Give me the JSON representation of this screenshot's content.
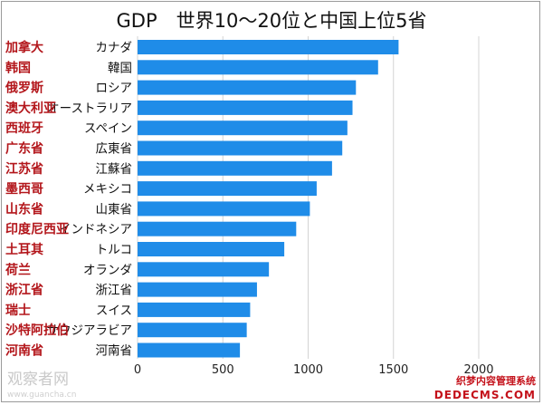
{
  "chart_data": {
    "type": "bar",
    "orientation": "horizontal",
    "title": "GDP　世界10～20位と中国上位5省",
    "categories": [
      "カナダ",
      "韓国",
      "ロシア",
      "オーストラリア",
      "スペイン",
      "広東省",
      "江蘇省",
      "メキシコ",
      "山東省",
      "インドネシア",
      "トルコ",
      "オランダ",
      "浙江省",
      "スイス",
      "サウジアラビア",
      "河南省"
    ],
    "categories_zh": [
      "加拿大",
      "韩国",
      "俄罗斯",
      "澳大利亚",
      "西班牙",
      "广东省",
      "江苏省",
      "墨西哥",
      "山东省",
      "印度尼西亚",
      "土耳其",
      "荷兰",
      "浙江省",
      "瑞士",
      "沙特阿拉伯",
      "河南省"
    ],
    "values": [
      1530,
      1410,
      1280,
      1260,
      1230,
      1200,
      1140,
      1050,
      1010,
      930,
      860,
      770,
      700,
      660,
      640,
      600
    ],
    "xlim": [
      0,
      2000
    ],
    "xticks": [
      "0",
      "500",
      "1000",
      "1500",
      "2000"
    ],
    "bar_color": "#1f8ce8",
    "grid": true
  },
  "watermarks": {
    "left_main": "观察者网",
    "left_sub": "www.guancha.cn",
    "right_main": "织梦内容管理系统",
    "right_sub": "DEDECMS.COM"
  }
}
